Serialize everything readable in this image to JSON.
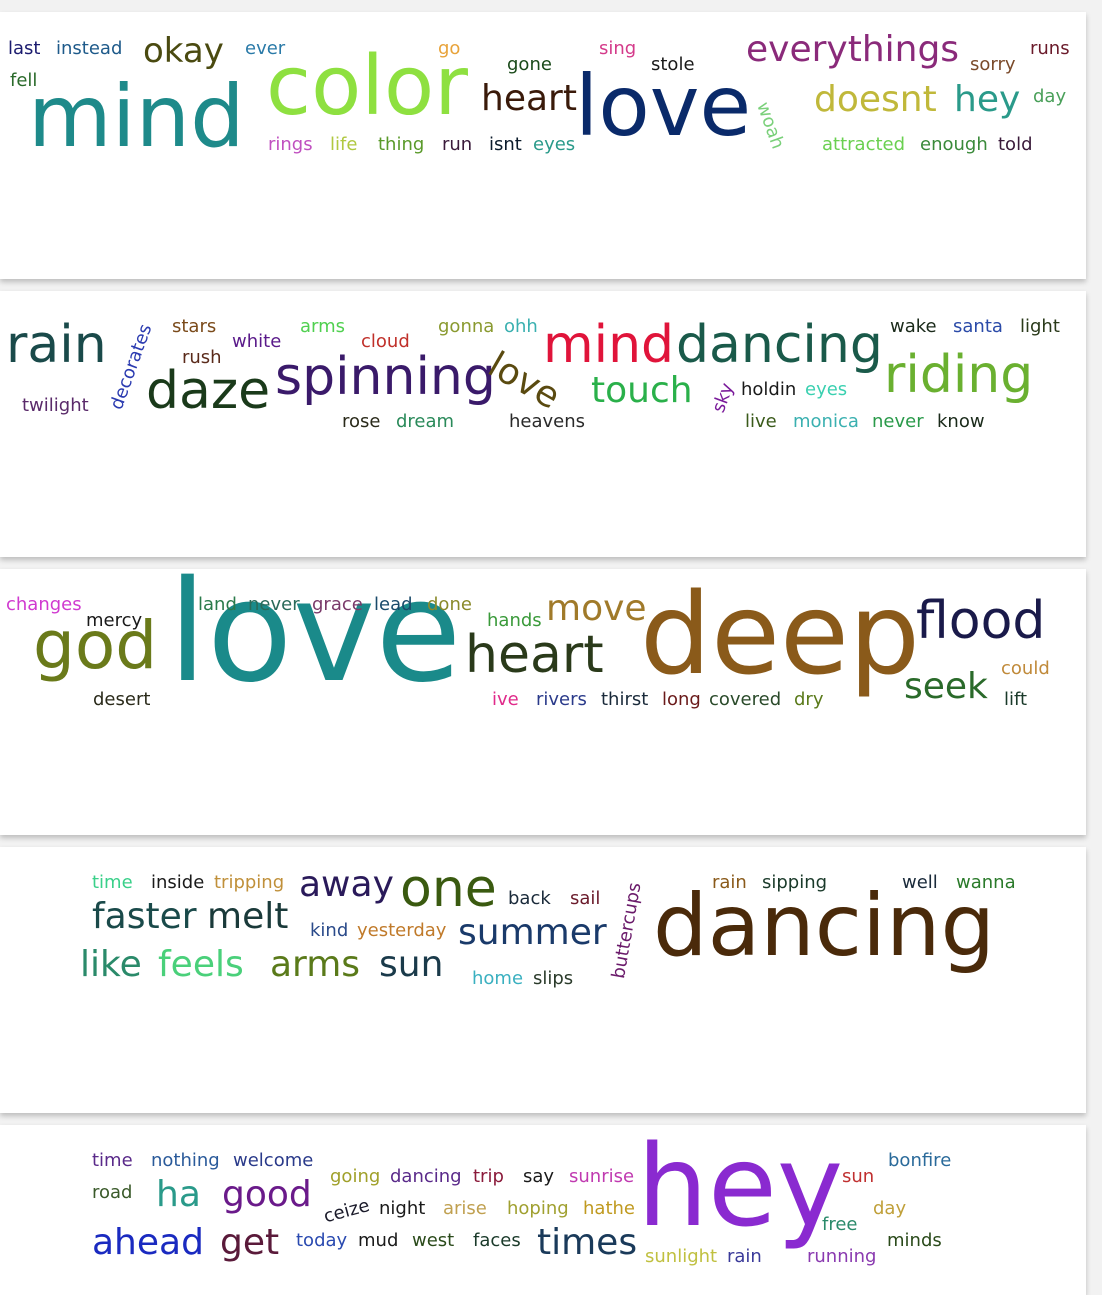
{
  "clouds": [
    {
      "words": [
        {
          "text": "last",
          "color": "#1a1a6e"
        },
        {
          "text": "instead",
          "color": "#1e5a8a"
        },
        {
          "text": "okay",
          "color": "#4a4a10"
        },
        {
          "text": "ever",
          "color": "#2a7aa8"
        },
        {
          "text": "go",
          "color": "#e8a33a"
        },
        {
          "text": "sing",
          "color": "#d43a8a"
        },
        {
          "text": "everythings",
          "color": "#8a2a7a"
        },
        {
          "text": "runs",
          "color": "#6a1a2a"
        },
        {
          "text": "fell",
          "color": "#2a6a2a"
        },
        {
          "text": "mind",
          "color": "#1e8a8a"
        },
        {
          "text": "color",
          "color": "#8ee040"
        },
        {
          "text": "gone",
          "color": "#1a4a1a"
        },
        {
          "text": "stole",
          "color": "#1a1a1a"
        },
        {
          "text": "heart",
          "color": "#3a1a0a"
        },
        {
          "text": "love",
          "color": "#0a2a6a"
        },
        {
          "text": "woah",
          "color": "#7ad07a"
        },
        {
          "text": "doesnt",
          "color": "#c0b83a"
        },
        {
          "text": "hey",
          "color": "#2a9a8a"
        },
        {
          "text": "sorry",
          "color": "#7a4a2a"
        },
        {
          "text": "day",
          "color": "#4aa05a"
        },
        {
          "text": "rings",
          "color": "#c050c0"
        },
        {
          "text": "life",
          "color": "#b0c840"
        },
        {
          "text": "thing",
          "color": "#5a9a2a"
        },
        {
          "text": "run",
          "color": "#3a1a3a"
        },
        {
          "text": "isnt",
          "color": "#0a1a2a"
        },
        {
          "text": "eyes",
          "color": "#2a9a8a"
        },
        {
          "text": "attracted",
          "color": "#6ad050"
        },
        {
          "text": "enough",
          "color": "#3a8a3a"
        },
        {
          "text": "told",
          "color": "#3a1a3a"
        }
      ]
    },
    {
      "words": [
        {
          "text": "rain",
          "color": "#1a4a4a"
        },
        {
          "text": "decorates",
          "color": "#2a3ab0"
        },
        {
          "text": "stars",
          "color": "#7a4a1a"
        },
        {
          "text": "rush",
          "color": "#5a2a1a"
        },
        {
          "text": "white",
          "color": "#5a1a8a"
        },
        {
          "text": "arms",
          "color": "#50d050"
        },
        {
          "text": "cloud",
          "color": "#c0302a"
        },
        {
          "text": "gonna",
          "color": "#8a9a30"
        },
        {
          "text": "ohh",
          "color": "#3ab0b0"
        },
        {
          "text": "twilight",
          "color": "#5a2a6a"
        },
        {
          "text": "daze",
          "color": "#1a3a1a"
        },
        {
          "text": "spinning",
          "color": "#3a1a6a"
        },
        {
          "text": "love",
          "color": "#5a4a10"
        },
        {
          "text": "mind",
          "color": "#e0143a"
        },
        {
          "text": "dancing",
          "color": "#1a5a4a"
        },
        {
          "text": "wake",
          "color": "#1a2a1a"
        },
        {
          "text": "santa",
          "color": "#2a4aa8"
        },
        {
          "text": "light",
          "color": "#2a3a1a"
        },
        {
          "text": "touch",
          "color": "#2ab04a"
        },
        {
          "text": "sky",
          "color": "#7a1a9a"
        },
        {
          "text": "holdin",
          "color": "#1a1a1a"
        },
        {
          "text": "eyes",
          "color": "#3ad0b0"
        },
        {
          "text": "riding",
          "color": "#6ab030"
        },
        {
          "text": "rose",
          "color": "#2a2a1a"
        },
        {
          "text": "dream",
          "color": "#2a8a5a"
        },
        {
          "text": "heavens",
          "color": "#2a2a2a"
        },
        {
          "text": "live",
          "color": "#3a5a1a"
        },
        {
          "text": "monica",
          "color": "#3ab0b0"
        },
        {
          "text": "never",
          "color": "#2a9a4a"
        },
        {
          "text": "know",
          "color": "#1a2a1a"
        }
      ]
    },
    {
      "words": [
        {
          "text": "changes",
          "color": "#d03ad0"
        },
        {
          "text": "mercy",
          "color": "#1a1a1a"
        },
        {
          "text": "god",
          "color": "#6a7a1a"
        },
        {
          "text": "desert",
          "color": "#2a2a1a"
        },
        {
          "text": "love",
          "color": "#1a8a8a"
        },
        {
          "text": "land",
          "color": "#2a7a4a"
        },
        {
          "text": "never",
          "color": "#2a6a5a"
        },
        {
          "text": "grace",
          "color": "#7a3a6a"
        },
        {
          "text": "lead",
          "color": "#1a4a6a"
        },
        {
          "text": "done",
          "color": "#8a8a2a"
        },
        {
          "text": "hands",
          "color": "#3a9a3a"
        },
        {
          "text": "move",
          "color": "#a07a2a"
        },
        {
          "text": "heart",
          "color": "#2a3a1a"
        },
        {
          "text": "deep",
          "color": "#8a5a1a"
        },
        {
          "text": "flood",
          "color": "#1a1a4a"
        },
        {
          "text": "seek",
          "color": "#2a6a2a"
        },
        {
          "text": "could",
          "color": "#c08a3a"
        },
        {
          "text": "lift",
          "color": "#1a3a2a"
        },
        {
          "text": "ive",
          "color": "#e02a8a"
        },
        {
          "text": "rivers",
          "color": "#2a3a8a"
        },
        {
          "text": "thirst",
          "color": "#1a2a3a"
        },
        {
          "text": "long",
          "color": "#6a1a1a"
        },
        {
          "text": "covered",
          "color": "#2a4a2a"
        },
        {
          "text": "dry",
          "color": "#5a7a1a"
        }
      ]
    },
    {
      "words": [
        {
          "text": "time",
          "color": "#3ad08a"
        },
        {
          "text": "inside",
          "color": "#1a1a1a"
        },
        {
          "text": "tripping",
          "color": "#c0903a"
        },
        {
          "text": "away",
          "color": "#2a1a5a"
        },
        {
          "text": "one",
          "color": "#3a5a10"
        },
        {
          "text": "back",
          "color": "#1a2a3a"
        },
        {
          "text": "sail",
          "color": "#6a1a2a"
        },
        {
          "text": "buttercups",
          "color": "#6a1a6a"
        },
        {
          "text": "rain",
          "color": "#8a5a1a"
        },
        {
          "text": "sipping",
          "color": "#1a3a2a"
        },
        {
          "text": "well",
          "color": "#1a2a3a"
        },
        {
          "text": "wanna",
          "color": "#2a7a2a"
        },
        {
          "text": "faster",
          "color": "#1a4a4a"
        },
        {
          "text": "melt",
          "color": "#1a3a3a"
        },
        {
          "text": "kind",
          "color": "#2a4a8a"
        },
        {
          "text": "yesterday",
          "color": "#c07a2a"
        },
        {
          "text": "summer",
          "color": "#1a3a6a"
        },
        {
          "text": "dancing",
          "color": "#4a2a0a"
        },
        {
          "text": "like",
          "color": "#2a8a6a"
        },
        {
          "text": "feels",
          "color": "#4ad07a"
        },
        {
          "text": "arms",
          "color": "#5a7a1a"
        },
        {
          "text": "sun",
          "color": "#1a3a4a"
        },
        {
          "text": "home",
          "color": "#3ab0c0"
        },
        {
          "text": "slips",
          "color": "#2a3a2a"
        }
      ]
    },
    {
      "words": [
        {
          "text": "time",
          "color": "#5a2a8a"
        },
        {
          "text": "nothing",
          "color": "#2a5a9a"
        },
        {
          "text": "welcome",
          "color": "#2a3a8a"
        },
        {
          "text": "going",
          "color": "#a0a02a"
        },
        {
          "text": "dancing",
          "color": "#5a2a8a"
        },
        {
          "text": "trip",
          "color": "#8a1a3a"
        },
        {
          "text": "say",
          "color": "#1a1a1a"
        },
        {
          "text": "sunrise",
          "color": "#c03ab0"
        },
        {
          "text": "hey",
          "color": "#8a2ad0"
        },
        {
          "text": "sun",
          "color": "#c03030"
        },
        {
          "text": "bonfire",
          "color": "#2a6a9a"
        },
        {
          "text": "road",
          "color": "#3a5a2a"
        },
        {
          "text": "ha",
          "color": "#2a9a8a"
        },
        {
          "text": "good",
          "color": "#6a1a8a"
        },
        {
          "text": "ceize",
          "color": "#1a1a2a"
        },
        {
          "text": "night",
          "color": "#1a1a1a"
        },
        {
          "text": "arise",
          "color": "#c0a050"
        },
        {
          "text": "hoping",
          "color": "#a0a030"
        },
        {
          "text": "hathe",
          "color": "#c09a20"
        },
        {
          "text": "free",
          "color": "#2a8a6a"
        },
        {
          "text": "day",
          "color": "#c0a03a"
        },
        {
          "text": "ahead",
          "color": "#1a2ac0"
        },
        {
          "text": "get",
          "color": "#5a1a3a"
        },
        {
          "text": "today",
          "color": "#2a4ab0"
        },
        {
          "text": "mud",
          "color": "#1a1a1a"
        },
        {
          "text": "west",
          "color": "#2a4a1a"
        },
        {
          "text": "faces",
          "color": "#1a3a2a"
        },
        {
          "text": "times",
          "color": "#1a3a5a"
        },
        {
          "text": "sunlight",
          "color": "#c0c040"
        },
        {
          "text": "rain",
          "color": "#3a3a9a"
        },
        {
          "text": "running",
          "color": "#8a3ab0"
        },
        {
          "text": "minds",
          "color": "#2a4a1a"
        }
      ]
    }
  ]
}
